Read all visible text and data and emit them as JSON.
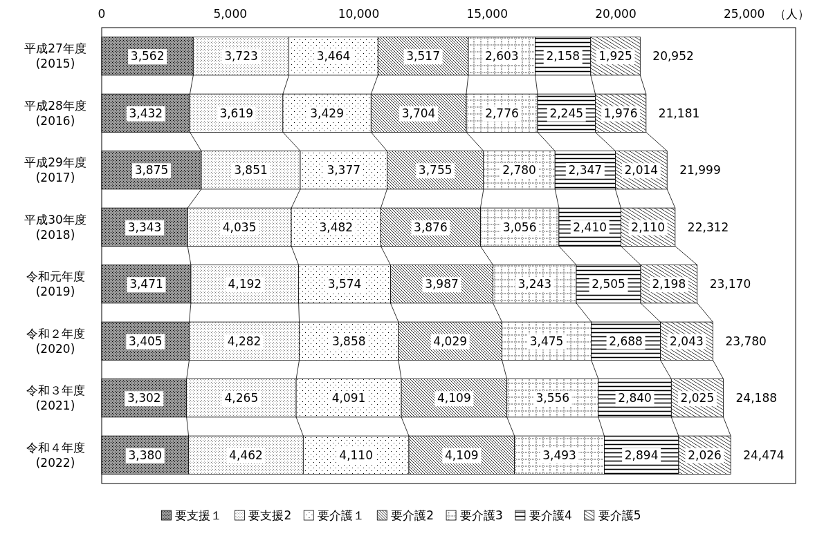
{
  "chart_data": {
    "type": "bar",
    "orientation": "horizontal",
    "stacked": true,
    "xlabel": "（人）",
    "legend": "bottom",
    "categories": [
      "平成27年度 (2015)",
      "平成28年度 (2016)",
      "平成29年度 (2017)",
      "平成30年度 (2018)",
      "令和元年度 (2019)",
      "令和２年度 (2020)",
      "令和３年度 (2021)",
      "令和４年度 (2022)"
    ],
    "xlim": [
      0,
      27000
    ],
    "xticks": [
      0,
      {
        "value": 5000,
        "label": "5,000"
      },
      {
        "value": 10000,
        "label": "10,000"
      },
      {
        "value": 15000,
        "label": "15,000"
      },
      {
        "value": 20000,
        "label": "20,000"
      },
      {
        "value": 25000,
        "label": "25,000"
      }
    ],
    "series": [
      {
        "name": "要支援１",
        "color": "#000000",
        "values": [
          3562,
          3432,
          3875,
          3343,
          3471,
          3405,
          3302,
          3380
        ],
        "value_labels": [
          "3,562",
          "3,432",
          "3,875",
          "3,343",
          "3,471",
          "3,405",
          "3,302",
          "3,380"
        ]
      },
      {
        "name": "要支援2",
        "color": "#000000",
        "values": [
          3723,
          3619,
          3851,
          4035,
          4192,
          4282,
          4265,
          4462
        ],
        "value_labels": [
          "3,723",
          "3,619",
          "3,851",
          "4,035",
          "4,192",
          "4,282",
          "4,265",
          "4,462"
        ]
      },
      {
        "name": "要介護１",
        "color": "#000000",
        "values": [
          3464,
          3429,
          3377,
          3482,
          3574,
          3858,
          4091,
          4110
        ],
        "value_labels": [
          "3,464",
          "3,429",
          "3,377",
          "3,482",
          "3,574",
          "3,858",
          "4,091",
          "4,110"
        ]
      },
      {
        "name": "要介護2",
        "color": "#000000",
        "values": [
          3517,
          3704,
          3755,
          3876,
          3987,
          4029,
          4109,
          4109
        ],
        "value_labels": [
          "3,517",
          "3,704",
          "3,755",
          "3,876",
          "3,987",
          "4,029",
          "4,109",
          "4,109"
        ]
      },
      {
        "name": "要介護3",
        "color": "#000000",
        "values": [
          2603,
          2776,
          2780,
          3056,
          3243,
          3475,
          3556,
          3493
        ],
        "value_labels": [
          "2,603",
          "2,776",
          "2,780",
          "3,056",
          "3,243",
          "3,475",
          "3,556",
          "3,493"
        ]
      },
      {
        "name": "要介護4",
        "color": "#000000",
        "values": [
          2158,
          2245,
          2347,
          2410,
          2505,
          2688,
          2840,
          2894
        ],
        "value_labels": [
          "2,158",
          "2,245",
          "2,347",
          "2,410",
          "2,505",
          "2,688",
          "2,840",
          "2,894"
        ]
      },
      {
        "name": "要介護5",
        "color": "#000000",
        "values": [
          1925,
          1976,
          2014,
          2110,
          2198,
          2043,
          2025,
          2026
        ],
        "value_labels": [
          "1,925",
          "1,976",
          "2,014",
          "2,110",
          "2,198",
          "2,043",
          "2,025",
          "2,026"
        ]
      }
    ],
    "totals": [
      "20,952",
      "21,181",
      "21,999",
      "22,312",
      "23,170",
      "23,780",
      "24,188",
      "24,474"
    ]
  }
}
